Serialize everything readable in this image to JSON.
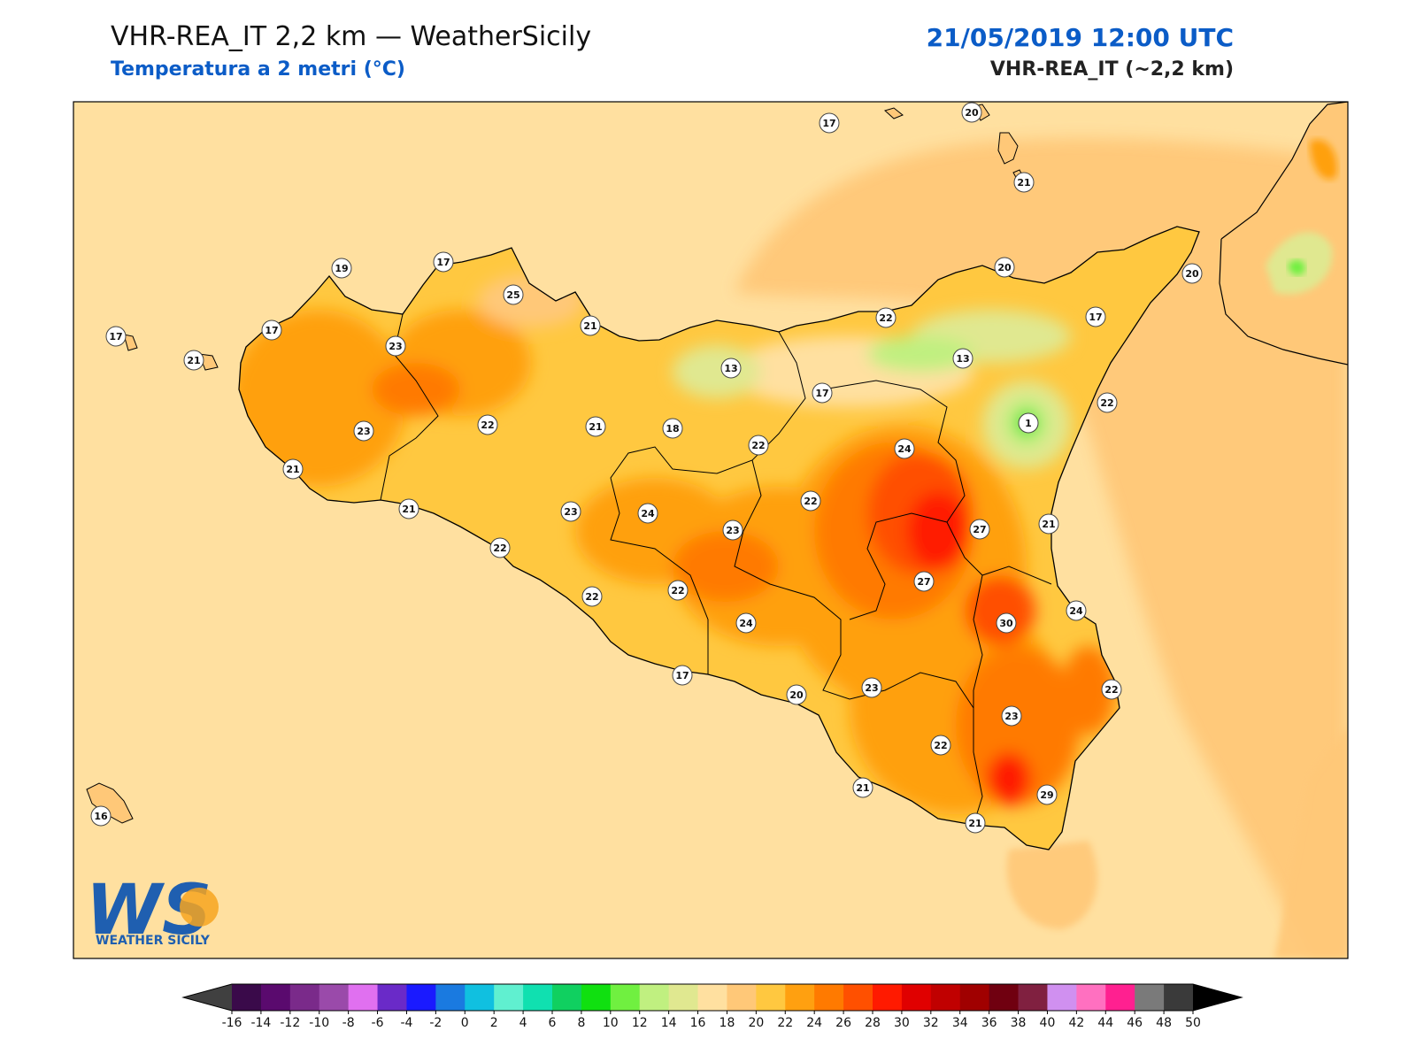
{
  "header": {
    "title": "VHR-REA_IT 2,2 km — WeatherSicily",
    "subtitle": "Temperatura a 2 metri (°C)",
    "datetime": "21/05/2019 12:00 UTC",
    "model": "VHR-REA_IT (~2,2 km)"
  },
  "logo": {
    "mark": "WS",
    "name": "WEATHER SICILY"
  },
  "labels": [
    {
      "value": "17"
    },
    {
      "value": "20"
    },
    {
      "value": "21"
    },
    {
      "value": "19"
    },
    {
      "value": "17"
    },
    {
      "value": "25"
    },
    {
      "value": "20"
    },
    {
      "value": "20"
    },
    {
      "value": "17"
    },
    {
      "value": "21"
    },
    {
      "value": "17"
    },
    {
      "value": "22"
    },
    {
      "value": "17"
    },
    {
      "value": "23"
    },
    {
      "value": "21"
    },
    {
      "value": "13"
    },
    {
      "value": "13"
    },
    {
      "value": "17"
    },
    {
      "value": "22"
    },
    {
      "value": "1"
    },
    {
      "value": "23"
    },
    {
      "value": "22"
    },
    {
      "value": "21"
    },
    {
      "value": "18"
    },
    {
      "value": "22"
    },
    {
      "value": "24"
    },
    {
      "value": "21"
    },
    {
      "value": "21"
    },
    {
      "value": "23"
    },
    {
      "value": "24"
    },
    {
      "value": "23"
    },
    {
      "value": "22"
    },
    {
      "value": "27"
    },
    {
      "value": "21"
    },
    {
      "value": "27"
    },
    {
      "value": "22"
    },
    {
      "value": "22"
    },
    {
      "value": "22"
    },
    {
      "value": "24"
    },
    {
      "value": "30"
    },
    {
      "value": "24"
    },
    {
      "value": "17"
    },
    {
      "value": "20"
    },
    {
      "value": "23"
    },
    {
      "value": "22"
    },
    {
      "value": "23"
    },
    {
      "value": "22"
    },
    {
      "value": "21"
    },
    {
      "value": "29"
    },
    {
      "value": "21"
    },
    {
      "value": "16"
    }
  ],
  "colorbar": {
    "ticks": [
      "-16",
      "-14",
      "-12",
      "-10",
      "-8",
      "-6",
      "-4",
      "-2",
      "0",
      "2",
      "4",
      "6",
      "8",
      "10",
      "12",
      "14",
      "16",
      "18",
      "20",
      "22",
      "24",
      "26",
      "28",
      "30",
      "32",
      "34",
      "36",
      "38",
      "40",
      "42",
      "44",
      "46",
      "48",
      "50"
    ],
    "colors": [
      "#3a0a4a",
      "#5a0a6e",
      "#7a2a8a",
      "#9a4aaa",
      "#e070f0",
      "#6a2ac8",
      "#1a1aff",
      "#1a7ae0",
      "#10c0e0",
      "#60f0d0",
      "#10e0b0",
      "#10d060",
      "#10e010",
      "#70f040",
      "#c0f080",
      "#e0e890",
      "#ffe0a0",
      "#ffc878",
      "#ffc840",
      "#ffa010",
      "#ff7a00",
      "#ff5000",
      "#ff1a00",
      "#e00000",
      "#c00000",
      "#a00000",
      "#700010",
      "#802040",
      "#d090f0",
      "#ff70c0",
      "#ff2090",
      "#7a7a7a",
      "#3a3a3a"
    ],
    "under_color": "#404040",
    "over_color": "#000000"
  }
}
